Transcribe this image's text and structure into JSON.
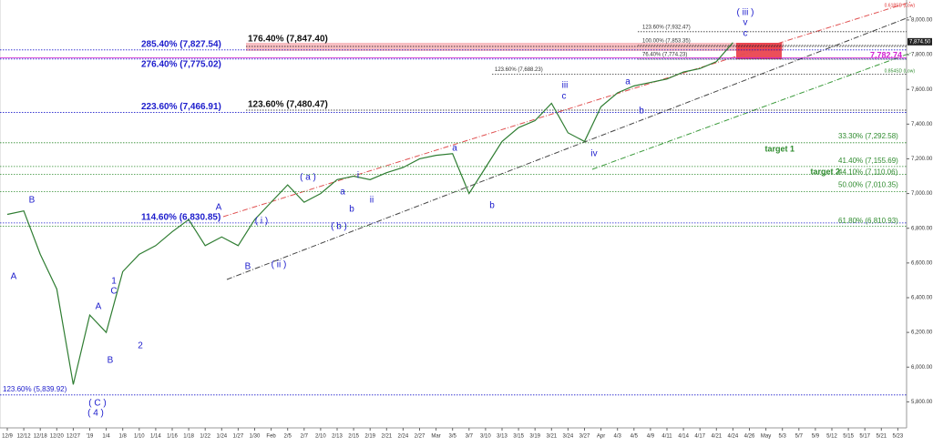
{
  "chart_data": {
    "type": "line",
    "color": "#2f7d32",
    "categories": [
      "12/9",
      "12/12",
      "12/18",
      "12/20",
      "12/27",
      "'19",
      "1/4",
      "1/8",
      "1/10",
      "1/14",
      "1/16",
      "1/18",
      "1/22",
      "1/24",
      "1/27",
      "1/30",
      "Feb",
      "2/5",
      "2/7",
      "2/10",
      "2/13",
      "2/15",
      "2/19",
      "2/21",
      "2/24",
      "2/27",
      "Mar",
      "3/5",
      "3/7",
      "3/10",
      "3/13",
      "3/15",
      "3/19",
      "3/21",
      "3/24",
      "3/27",
      "Apr",
      "4/3",
      "4/5",
      "4/9",
      "4/11",
      "4/14",
      "4/17",
      "4/21",
      "4/24",
      "4/26",
      "May",
      "5/3",
      "5/7",
      "5/9",
      "5/12",
      "5/15",
      "5/17",
      "5/21",
      "5/23"
    ],
    "values": [
      6880,
      6900,
      6650,
      6450,
      5900,
      6300,
      6200,
      6550,
      6650,
      6700,
      6780,
      6850,
      6700,
      6750,
      6700,
      6850,
      6950,
      7050,
      6950,
      7000,
      7080,
      7100,
      7080,
      7120,
      7150,
      7200,
      7220,
      7230,
      7000,
      7150,
      7300,
      7380,
      7420,
      7520,
      7350,
      7300,
      7500,
      7580,
      7620,
      7640,
      7660,
      7700,
      7720,
      7760,
      7870,
      null,
      null,
      null,
      null,
      null,
      null,
      null,
      null,
      null,
      null
    ],
    "ylim": [
      5650,
      8115
    ],
    "yticks": [
      {
        "value": 5800,
        "label": "5,800.00"
      },
      {
        "value": 6000,
        "label": "6,000.00"
      },
      {
        "value": 6200,
        "label": "6,200.00"
      },
      {
        "value": 6400,
        "label": "6,400.00"
      },
      {
        "value": 6600,
        "label": "6,600.00"
      },
      {
        "value": 6800,
        "label": "6,800.00"
      },
      {
        "value": 7000,
        "label": "7,000.00"
      },
      {
        "value": 7200,
        "label": "7,200.00"
      },
      {
        "value": 7400,
        "label": "7,400.00"
      },
      {
        "value": 7600,
        "label": "7,600.00"
      },
      {
        "value": 7800,
        "label": "7,800.00"
      },
      {
        "value": 8000,
        "label": "8,000.00"
      }
    ],
    "last_price": {
      "value": 7874.5,
      "label": "7,874.50"
    },
    "marker_price": {
      "value": 7782.74,
      "label": "7,782.74"
    },
    "levels": [
      {
        "label": "285.40% (7,827.54)",
        "value": 7827.54,
        "color": "#1c1ccc"
      },
      {
        "label": "276.40% (7,775.02)",
        "value": 7775.02,
        "color": "#1c1ccc"
      },
      {
        "label": "223.60% (7,466.91)",
        "value": 7466.91,
        "color": "#1c1ccc"
      },
      {
        "label": "114.60% (6,830.85)",
        "value": 6830.85,
        "color": "#1c1ccc"
      },
      {
        "label": "123.60% (5,839.92)",
        "value": 5839.92,
        "color": "#1c1ccc"
      },
      {
        "label": "176.40% (7,847.40)",
        "value": 7847.4,
        "color": "#111111"
      },
      {
        "label": "123.60% (7,480.47)",
        "value": 7480.47,
        "color": "#111111"
      },
      {
        "label": "123.60% (7,932.47)",
        "value": 7932.47,
        "color": "#333333"
      },
      {
        "label": "100.00% (7,853.35)",
        "value": 7853.35,
        "color": "#333333"
      },
      {
        "label": "76.40% (7,774.23)",
        "value": 7774.23,
        "color": "#333333"
      },
      {
        "label": "123.60% (7,688.23)",
        "value": 7688.23,
        "color": "#333333"
      },
      {
        "label": "33.30% (7,292.58)",
        "value": 7292.58,
        "color": "#2e8b2e"
      },
      {
        "label": "41.40% (7,155.69)",
        "value": 7155.69,
        "color": "#2e8b2e"
      },
      {
        "label": "44.10% (7,110.06)",
        "value": 7110.06,
        "color": "#2e8b2e"
      },
      {
        "label": "50.00% (7,010.35)",
        "value": 7010.35,
        "color": "#2e8b2e"
      },
      {
        "label": "61.80% (6,810.93)",
        "value": 6810.93,
        "color": "#2e8b2e"
      }
    ],
    "notes": [
      "0.618SD (Low)",
      "0.854SD (Low)",
      "target 1",
      "target 2"
    ],
    "annotations": [
      "B",
      "A",
      "A",
      "B",
      "1",
      "C",
      "2",
      "( C )",
      "( 4 )",
      "A",
      "B",
      "( i )",
      "( ii )",
      "( a )",
      "( b )",
      "a",
      "b",
      "i",
      "ii",
      "a",
      "b",
      "iii",
      "c",
      "iv",
      "a",
      "b",
      "( iii )",
      "v",
      "c"
    ]
  }
}
